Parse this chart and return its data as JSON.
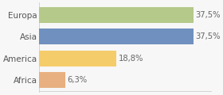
{
  "categories": [
    "Europa",
    "Asia",
    "America",
    "Africa"
  ],
  "values": [
    37.5,
    37.5,
    18.8,
    6.3
  ],
  "labels": [
    "37,5%",
    "37,5%",
    "18,8%",
    "6,3%"
  ],
  "bar_colors": [
    "#b5c98a",
    "#7090bf",
    "#f5cc6a",
    "#e8b080"
  ],
  "background_color": "#f7f7f7",
  "bar_area_bg": "#ffffff",
  "xlim": [
    0,
    42
  ],
  "label_color": "#666666",
  "tick_color": "#555555",
  "figsize": [
    2.8,
    1.2
  ],
  "dpi": 100,
  "bar_height": 0.72,
  "label_fontsize": 7.2,
  "tick_fontsize": 7.5
}
